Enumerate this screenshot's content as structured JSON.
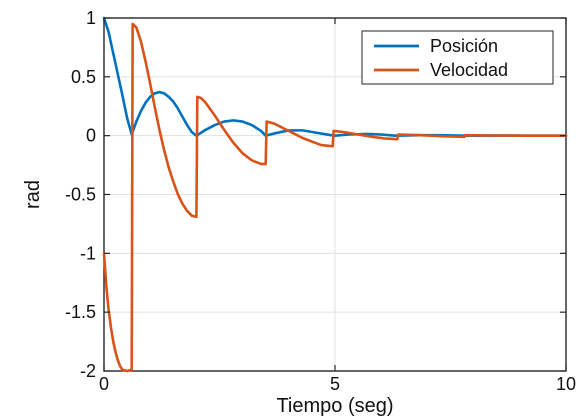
{
  "chart_data": {
    "type": "line",
    "title": "",
    "xlabel": "Tiempo (seg)",
    "ylabel": "rad",
    "xlim": [
      0,
      10
    ],
    "ylim": [
      -2,
      1
    ],
    "xticks": [
      0,
      5,
      10
    ],
    "yticks": [
      1,
      0.5,
      0,
      -0.5,
      -1,
      -1.5,
      -2
    ],
    "xtick_labels": [
      "0",
      "5",
      "10"
    ],
    "ytick_labels": [
      "1",
      "0.5",
      "0",
      "-0.5",
      "-1",
      "-1.5",
      "-2"
    ],
    "grid": true,
    "legend": {
      "position": "top-right",
      "entries": [
        "Posición",
        "Velocidad"
      ]
    },
    "series": [
      {
        "name": "Posición",
        "color": "#0072BD",
        "points": [
          [
            0,
            1
          ],
          [
            0.1,
            0.88
          ],
          [
            0.2,
            0.7
          ],
          [
            0.3,
            0.52
          ],
          [
            0.4,
            0.34
          ],
          [
            0.5,
            0.15
          ],
          [
            0.6,
            0.01
          ],
          [
            0.7,
            0.12
          ],
          [
            0.8,
            0.21
          ],
          [
            0.9,
            0.28
          ],
          [
            1.0,
            0.33
          ],
          [
            1.1,
            0.36
          ],
          [
            1.2,
            0.37
          ],
          [
            1.3,
            0.36
          ],
          [
            1.4,
            0.33
          ],
          [
            1.5,
            0.29
          ],
          [
            1.6,
            0.23
          ],
          [
            1.7,
            0.16
          ],
          [
            1.8,
            0.09
          ],
          [
            1.9,
            0.03
          ],
          [
            2.0,
            0.0
          ],
          [
            2.2,
            0.05
          ],
          [
            2.4,
            0.09
          ],
          [
            2.6,
            0.12
          ],
          [
            2.8,
            0.13
          ],
          [
            3.0,
            0.12
          ],
          [
            3.2,
            0.09
          ],
          [
            3.4,
            0.04
          ],
          [
            3.5,
            0.0
          ],
          [
            3.7,
            0.02
          ],
          [
            4.0,
            0.045
          ],
          [
            4.3,
            0.045
          ],
          [
            4.6,
            0.025
          ],
          [
            4.9,
            0.005
          ],
          [
            5.0,
            0.0
          ],
          [
            5.3,
            0.01
          ],
          [
            5.7,
            0.015
          ],
          [
            6.0,
            0.01
          ],
          [
            6.3,
            0.0
          ],
          [
            6.8,
            0.004
          ],
          [
            7.3,
            0.004
          ],
          [
            7.8,
            0.0
          ],
          [
            8.5,
            0.001
          ],
          [
            9.2,
            0.0
          ],
          [
            10,
            0.0
          ]
        ]
      },
      {
        "name": "Velocidad",
        "color": "#D95319",
        "points": [
          [
            0,
            -1.0
          ],
          [
            0.05,
            -1.28
          ],
          [
            0.1,
            -1.48
          ],
          [
            0.15,
            -1.63
          ],
          [
            0.2,
            -1.75
          ],
          [
            0.25,
            -1.84
          ],
          [
            0.3,
            -1.91
          ],
          [
            0.35,
            -1.96
          ],
          [
            0.4,
            -1.99
          ],
          [
            0.5,
            -2.0
          ],
          [
            0.6,
            -1.99
          ],
          [
            0.62,
            0.95
          ],
          [
            0.7,
            0.92
          ],
          [
            0.8,
            0.8
          ],
          [
            0.9,
            0.63
          ],
          [
            1.0,
            0.44
          ],
          [
            1.1,
            0.24
          ],
          [
            1.2,
            0.05
          ],
          [
            1.3,
            -0.12
          ],
          [
            1.4,
            -0.27
          ],
          [
            1.5,
            -0.39
          ],
          [
            1.6,
            -0.5
          ],
          [
            1.7,
            -0.58
          ],
          [
            1.8,
            -0.64
          ],
          [
            1.9,
            -0.68
          ],
          [
            2.0,
            -0.69
          ],
          [
            2.02,
            0.33
          ],
          [
            2.1,
            0.32
          ],
          [
            2.2,
            0.28
          ],
          [
            2.4,
            0.17
          ],
          [
            2.6,
            0.05
          ],
          [
            2.8,
            -0.06
          ],
          [
            3.0,
            -0.15
          ],
          [
            3.2,
            -0.21
          ],
          [
            3.4,
            -0.24
          ],
          [
            3.5,
            -0.24
          ],
          [
            3.52,
            0.12
          ],
          [
            3.7,
            0.1
          ],
          [
            3.9,
            0.06
          ],
          [
            4.1,
            0.02
          ],
          [
            4.3,
            -0.02
          ],
          [
            4.5,
            -0.05
          ],
          [
            4.7,
            -0.08
          ],
          [
            4.95,
            -0.09
          ],
          [
            4.97,
            0.04
          ],
          [
            5.2,
            0.03
          ],
          [
            5.5,
            0.01
          ],
          [
            5.8,
            -0.01
          ],
          [
            6.1,
            -0.025
          ],
          [
            6.35,
            -0.03
          ],
          [
            6.37,
            0.01
          ],
          [
            6.8,
            0.005
          ],
          [
            7.3,
            -0.005
          ],
          [
            7.8,
            -0.01
          ],
          [
            7.82,
            0.004
          ],
          [
            8.5,
            0.001
          ],
          [
            9.2,
            0.0
          ],
          [
            10,
            0.0
          ]
        ]
      }
    ]
  }
}
